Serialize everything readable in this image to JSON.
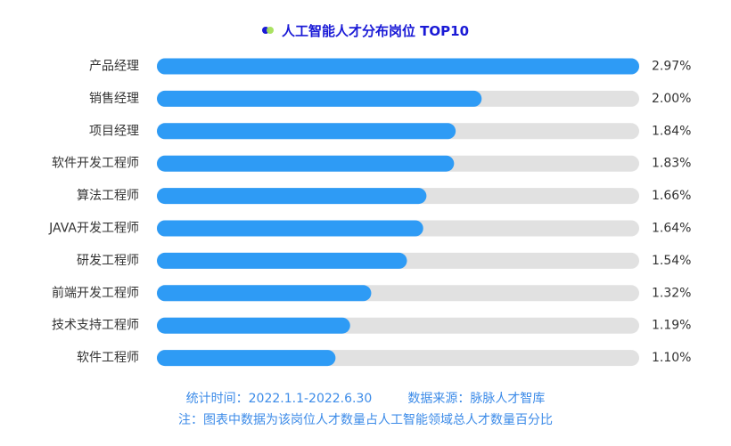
{
  "colors": {
    "bar": "#2e9bf5",
    "track": "#e1e1e1",
    "title": "#1a1ad6",
    "footer": "#3c8be8",
    "label": "#333333",
    "icon_a": "#1a1ad6",
    "icon_b": "#a5e05a"
  },
  "title_icon": "two-dots-icon",
  "chart_data": {
    "type": "bar",
    "orientation": "horizontal",
    "title": "人工智能人才分布岗位 TOP10",
    "categories": [
      "产品经理",
      "销售经理",
      "项目经理",
      "软件开发工程师",
      "算法工程师",
      "JAVA开发工程师",
      "研发工程师",
      "前端开发工程师",
      "技术支持工程师",
      "软件工程师"
    ],
    "values": [
      2.97,
      2.0,
      1.84,
      1.83,
      1.66,
      1.64,
      1.54,
      1.32,
      1.19,
      1.1
    ],
    "value_labels": [
      "2.97%",
      "2.00%",
      "1.84%",
      "1.83%",
      "1.66%",
      "1.64%",
      "1.54%",
      "1.32%",
      "1.19%",
      "1.10%"
    ],
    "unit": "%",
    "xlim": [
      0,
      2.97
    ],
    "grid": false,
    "legend": "none"
  },
  "footer": {
    "line1": "统计时间：2022.1.1-2022.6.30         数据来源：脉脉人才智库",
    "line2": "注：图表中数据为该岗位人才数量占人工智能领域总人才数量百分比"
  }
}
